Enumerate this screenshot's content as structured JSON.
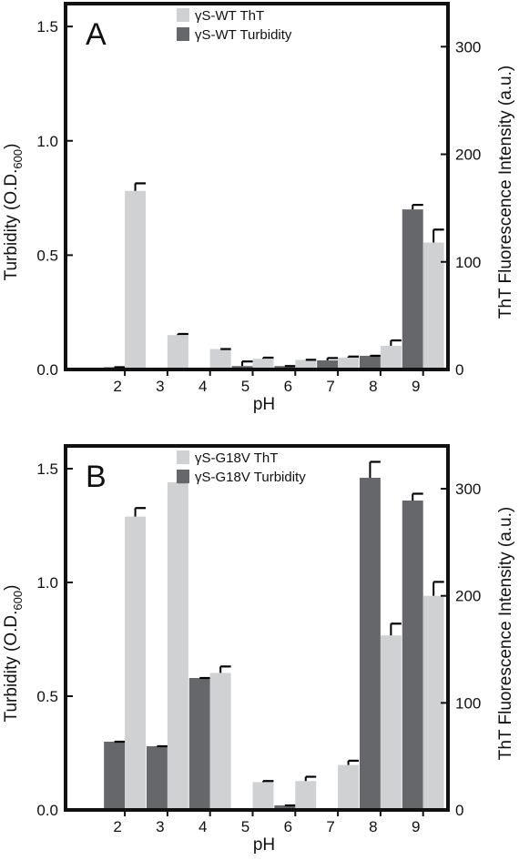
{
  "chart_data": [
    {
      "type": "bar",
      "panel_label": "A",
      "categories": [
        "2",
        "3",
        "4",
        "5",
        "6",
        "7",
        "8",
        "9"
      ],
      "xlabel": "pH",
      "ylabel_left": "Turbidity (O.D.",
      "ylabel_left_sub": "600",
      "ylabel_left_close": ")",
      "ylabel_right": "ThT Fluorescence Intensity (a.u.)",
      "ylim_left": [
        0,
        1.6
      ],
      "ylim_right": [
        0,
        340
      ],
      "yticks_left": [
        "0.0",
        "0.5",
        "1.0",
        "1.5"
      ],
      "yticks_right": [
        "0",
        "100",
        "200",
        "300"
      ],
      "series": [
        {
          "name": "γS-WT Turbidity",
          "axis": "left",
          "color": "#66676b",
          "values": [
            0.01,
            0.0,
            0.0,
            0.015,
            0.015,
            0.04,
            0.06,
            0.7
          ],
          "errors": [
            0.0,
            0.0,
            0.0,
            0.02,
            0.0,
            0.01,
            0.0,
            0.02
          ]
        },
        {
          "name": "γS-WT ThT",
          "axis": "right",
          "color": "#d0d1d3",
          "values": [
            166,
            32,
            19,
            10,
            9,
            11,
            22,
            118
          ],
          "errors": [
            7,
            1,
            0,
            1,
            0,
            1,
            5,
            12
          ]
        }
      ],
      "legend": [
        "γS-WT ThT",
        "γS-WT Turbidity"
      ],
      "legend_position": "top-center",
      "grid": false
    },
    {
      "type": "bar",
      "panel_label": "B",
      "categories": [
        "2",
        "3",
        "4",
        "5",
        "6",
        "7",
        "8",
        "9"
      ],
      "xlabel": "pH",
      "ylabel_left": "Turbidity (O.D.",
      "ylabel_left_sub": "600",
      "ylabel_left_close": ")",
      "ylabel_right": "ThT Fluorescence Intensity (a.u.)",
      "ylim_left": [
        0,
        1.6
      ],
      "ylim_right": [
        0,
        340
      ],
      "yticks_left": [
        "0.0",
        "0.5",
        "1.0",
        "1.5"
      ],
      "yticks_right": [
        "0",
        "100",
        "200",
        "300"
      ],
      "series": [
        {
          "name": "γS-G18V Turbidity",
          "axis": "left",
          "color": "#66676b",
          "values": [
            0.3,
            0.28,
            0.58,
            0.0,
            0.02,
            0.0,
            1.46,
            1.36
          ],
          "errors": [
            0.0,
            0.0,
            0.0,
            0.0,
            0.0,
            0.0,
            0.07,
            0.03
          ]
        },
        {
          "name": "γS-G18V ThT",
          "axis": "right",
          "color": "#d0d1d3",
          "values": [
            274,
            306,
            128,
            26,
            27,
            42,
            163,
            200
          ],
          "errors": [
            8,
            0,
            6,
            1,
            4,
            4,
            11,
            13
          ]
        }
      ],
      "legend": [
        "γS-G18V ThT",
        "γS-G18V Turbidity"
      ],
      "legend_position": "top-center",
      "grid": false
    }
  ]
}
